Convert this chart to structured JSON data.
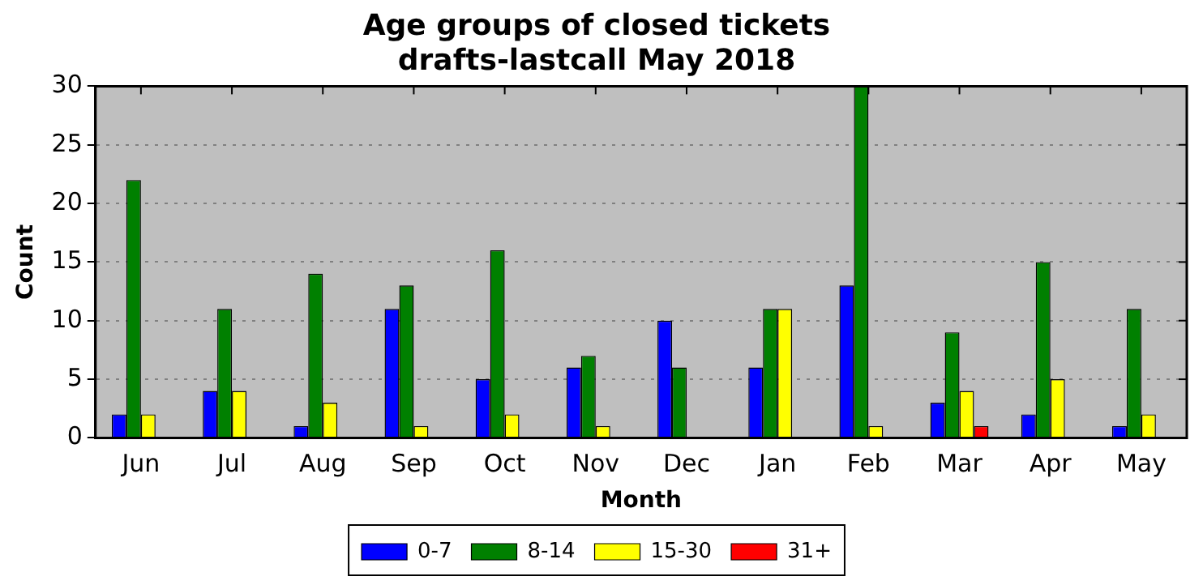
{
  "chart_data": {
    "type": "bar",
    "title": "Age groups of closed tickets\ndrafts-lastcall May 2018",
    "xlabel": "Month",
    "ylabel": "Count",
    "categories": [
      "Jun",
      "Jul",
      "Aug",
      "Sep",
      "Oct",
      "Nov",
      "Dec",
      "Jan",
      "Feb",
      "Mar",
      "Apr",
      "May"
    ],
    "series": [
      {
        "name": "0-7",
        "color": "#0000ff",
        "values": [
          2,
          4,
          1,
          11,
          5,
          6,
          10,
          6,
          13,
          3,
          2,
          1
        ]
      },
      {
        "name": "8-14",
        "color": "#008000",
        "values": [
          22,
          11,
          14,
          13,
          16,
          7,
          6,
          11,
          30,
          9,
          15,
          11
        ]
      },
      {
        "name": "15-30",
        "color": "#ffff00",
        "values": [
          2,
          4,
          3,
          1,
          2,
          1,
          0,
          11,
          1,
          4,
          5,
          2
        ]
      },
      {
        "name": "31+",
        "color": "#ff0000",
        "values": [
          0,
          0,
          0,
          0,
          0,
          0,
          0,
          0,
          0,
          1,
          0,
          0
        ]
      }
    ],
    "ylim": [
      0,
      30
    ],
    "yticks": [
      0,
      5,
      10,
      15,
      20,
      25,
      30
    ],
    "grid": "y",
    "legend": "bottom"
  }
}
